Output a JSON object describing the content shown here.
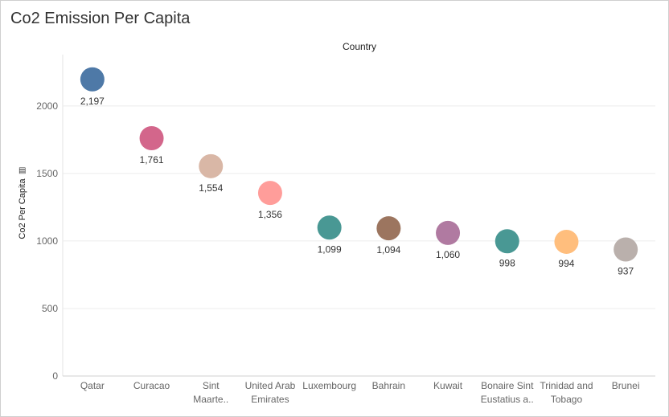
{
  "title": "Co2 Emission Per Capita",
  "column_header": "Country",
  "y_axis_title": "Co2 Per Capita",
  "chart_data": {
    "type": "scatter",
    "title": "Co2 Emission Per Capita",
    "xlabel": "Country",
    "ylabel": "Co2 Per Capita",
    "ylim": [
      0,
      2380
    ],
    "yticks": [
      0,
      500,
      1000,
      1500,
      2000
    ],
    "grid": true,
    "legend": "none",
    "categories": [
      [
        "Qatar"
      ],
      [
        "Curacao"
      ],
      [
        "Sint",
        "Maarte.."
      ],
      [
        "United Arab",
        "Emirates"
      ],
      [
        "Luxembourg"
      ],
      [
        "Bahrain"
      ],
      [
        "Kuwait"
      ],
      [
        "Bonaire Sint",
        "Eustatius a.."
      ],
      [
        "Trinidad and",
        "Tobago"
      ],
      [
        "Brunei"
      ]
    ],
    "values": [
      2197,
      1761,
      1554,
      1356,
      1099,
      1094,
      1060,
      998,
      994,
      937
    ],
    "value_labels": [
      "2,197",
      "1,761",
      "1,554",
      "1,356",
      "1,099",
      "1,094",
      "1,060",
      "998",
      "994",
      "937"
    ],
    "colors": [
      "#4e79a7",
      "#d3668b",
      "#d9b7a6",
      "#ff9d9a",
      "#499894",
      "#9c755f",
      "#b07aa1",
      "#499894",
      "#ffbe7d",
      "#bab0ac"
    ]
  }
}
